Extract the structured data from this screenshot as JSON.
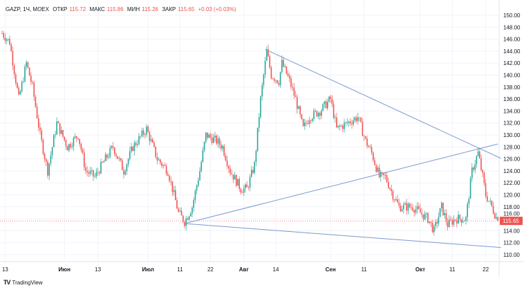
{
  "header": {
    "symbol": "GAZP, 1Ч, MOEX",
    "open_label": "ОТКР",
    "open": "115.72",
    "high_label": "МАКС",
    "high": "115.86",
    "low_label": "МИН",
    "low": "115.26",
    "close_label": "ЗАКР",
    "close": "115.65",
    "change": "+0.03 (+0.03%)"
  },
  "footer": {
    "brand": "TradingView"
  },
  "chart_data": {
    "type": "candlestick",
    "title": "GAZP, 1Ч, MOEX",
    "ylim": [
      109,
      151
    ],
    "y_ticks": [
      "150.00",
      "148.00",
      "146.00",
      "144.00",
      "142.00",
      "140.00",
      "138.00",
      "136.00",
      "134.00",
      "132.00",
      "130.00",
      "128.00",
      "126.00",
      "124.00",
      "122.00",
      "120.00",
      "118.00",
      "116.00",
      "114.00",
      "112.00",
      "110.00"
    ],
    "x_ticks": [
      {
        "label": "13",
        "bar": 2
      },
      {
        "label": "Июн",
        "bar": 41
      },
      {
        "label": "13",
        "bar": 63
      },
      {
        "label": "Июл",
        "bar": 96
      },
      {
        "label": "11",
        "bar": 117
      },
      {
        "label": "22",
        "bar": 137
      },
      {
        "label": "Авг",
        "bar": 159
      },
      {
        "label": "14",
        "bar": 180
      },
      {
        "label": "Сен",
        "bar": 216
      },
      {
        "label": "11",
        "bar": 238
      },
      {
        "label": "Окт",
        "bar": 275
      },
      {
        "label": "11",
        "bar": 296
      },
      {
        "label": "22",
        "bar": 318
      }
    ],
    "bars_total": 328,
    "price_path": [
      [
        0,
        147
      ],
      [
        5,
        145.5
      ],
      [
        11,
        136
      ],
      [
        16,
        142
      ],
      [
        20,
        138
      ],
      [
        25,
        130
      ],
      [
        30,
        124
      ],
      [
        36,
        132
      ],
      [
        43,
        128
      ],
      [
        50,
        130
      ],
      [
        55,
        124
      ],
      [
        61,
        123
      ],
      [
        68,
        126
      ],
      [
        73,
        128
      ],
      [
        80,
        124
      ],
      [
        86,
        128
      ],
      [
        95,
        131
      ],
      [
        102,
        126
      ],
      [
        109,
        124
      ],
      [
        116,
        117
      ],
      [
        120,
        115.5
      ],
      [
        125,
        118
      ],
      [
        130,
        124
      ],
      [
        134,
        130
      ],
      [
        141,
        129
      ],
      [
        145,
        128
      ],
      [
        150,
        124
      ],
      [
        157,
        121
      ],
      [
        161,
        121
      ],
      [
        166,
        125
      ],
      [
        170,
        136
      ],
      [
        174,
        144
      ],
      [
        177,
        140
      ],
      [
        182,
        139
      ],
      [
        184,
        142
      ],
      [
        189,
        139
      ],
      [
        193,
        136
      ],
      [
        198,
        131
      ],
      [
        202,
        133
      ],
      [
        209,
        134
      ],
      [
        216,
        136
      ],
      [
        220,
        131
      ],
      [
        227,
        132
      ],
      [
        234,
        133
      ],
      [
        239,
        129
      ],
      [
        243,
        127
      ],
      [
        248,
        123
      ],
      [
        252,
        123
      ],
      [
        257,
        120
      ],
      [
        261,
        118
      ],
      [
        266,
        118
      ],
      [
        270,
        118
      ],
      [
        275,
        117
      ],
      [
        280,
        116
      ],
      [
        284,
        114
      ],
      [
        289,
        118
      ],
      [
        293,
        115
      ],
      [
        298,
        116
      ],
      [
        305,
        116
      ],
      [
        309,
        124
      ],
      [
        313,
        127
      ],
      [
        316,
        123
      ],
      [
        318,
        120
      ],
      [
        322,
        118
      ],
      [
        326,
        115.65
      ]
    ],
    "trendlines": [
      {
        "from": [
          173,
          144.3
        ],
        "to": [
          328,
          126.1
        ]
      },
      {
        "from": [
          120,
          115.2
        ],
        "to": [
          326,
          128.5
        ]
      },
      {
        "from": [
          120,
          115.2
        ],
        "to": [
          328,
          111.2
        ]
      }
    ],
    "last_price": "115.65",
    "colors": {
      "up": "#26a69a",
      "down": "#ef5350",
      "trend": "#7a99cf",
      "grid": "#f0f3fa"
    }
  }
}
